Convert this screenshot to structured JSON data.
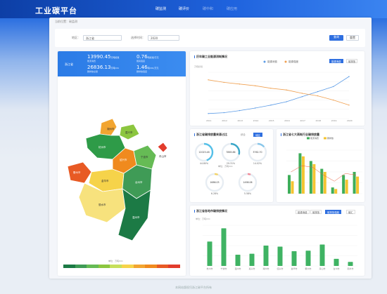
{
  "header": {
    "title": "工业碳平台",
    "nav": [
      "碳监测",
      "碳评价",
      "碳中和",
      "碳应用"
    ]
  },
  "breadcrumb": "当前位置：碳监测",
  "filter": {
    "region_label": "地区：",
    "region_value": "浙江省",
    "time_label": "选择时间：",
    "time_value": "2020",
    "query": "查询",
    "reset": "重置"
  },
  "summary": {
    "region": "浙江省",
    "stats": [
      {
        "value": "13990.45",
        "unit": "万吨标煤",
        "label": "能源消费"
      },
      {
        "value": "0.76",
        "unit": "吨标煤/万元",
        "label": "能耗强度"
      },
      {
        "value": "26836.13",
        "unit": "万吨CO₂",
        "label": "碳排放总量"
      },
      {
        "value": "1.46",
        "unit": "吨CO₂/万元",
        "label": "碳排放强度"
      }
    ]
  },
  "map": {
    "legend_label": "单位：万吨CO₂",
    "cities": [
      "湖州市",
      "嘉兴市",
      "杭州市",
      "绍兴市",
      "宁波市",
      "舟山市",
      "衢州市",
      "金华市",
      "台州市",
      "丽水市",
      "温州市"
    ],
    "colors": {
      "湖州市": "#f2a531",
      "嘉兴市": "#8cc63f",
      "杭州市": "#2e9b48",
      "绍兴市": "#f08a1e",
      "宁波市": "#66bb55",
      "舟山市": "#e23c2c",
      "衢州市": "#e85a24",
      "金华市": "#f6d34a",
      "台州市": "#3f9b56",
      "丽水市": "#f7e27d",
      "温州市": "#1c7a45"
    },
    "scale": [
      "#1c7a45",
      "#3f9b56",
      "#66bb55",
      "#8cc63f",
      "#c6df5b",
      "#f6d34a",
      "#f2a531",
      "#f08a1e",
      "#e85a24",
      "#e23c2c"
    ]
  },
  "trend": {
    "title": "历年碳工业能源消耗情况",
    "tabs": [
      "能源消费",
      "碳排放"
    ],
    "legend": [
      "能源消费",
      "能源强度"
    ],
    "yunit_left": "万吨标煤",
    "yunit_right": "吨标煤/万元"
  },
  "gauge": {
    "title": "浙江省碳排放量来源占比",
    "tabs": [
      "综合",
      "地区"
    ],
    "unit": "单位：万吨CO₂",
    "items": [
      {
        "value": "12023.48",
        "pct": "44.80%"
      },
      {
        "value": "7865.86",
        "pct": "29.31%"
      },
      {
        "value": "3762.70",
        "pct": "14.02%"
      },
      {
        "value": "1686.03",
        "pct": "6.28%"
      },
      {
        "value": "1498.06",
        "pct": "5.58%"
      }
    ]
  },
  "compare": {
    "title": "浙江省七大高耗行业碳排放量",
    "legend": [
      "能源消费",
      "碳排放"
    ],
    "yunit_left": "万吨标煤",
    "yunit_right": "万吨CO₂"
  },
  "citychart": {
    "title": "浙江省各地市碳排放情况",
    "tabs": [
      "能源消费",
      "碳排放",
      "碳排放强度",
      "碳汇"
    ],
    "yunit": "单位：万吨CO₂"
  },
  "chart_data": [
    {
      "type": "line",
      "x": [
        "2011",
        "2012",
        "2013",
        "2014",
        "2015",
        "2016",
        "2017",
        "2018",
        "2019",
        "2020"
      ],
      "series": [
        {
          "name": "能源消费",
          "values": [
            9600,
            9700,
            9950,
            10250,
            10600,
            11000,
            11600,
            12200,
            12800,
            13990
          ]
        },
        {
          "name": "能源强度",
          "values": [
            1.06,
            1.03,
            1.01,
            0.99,
            0.96,
            0.94,
            0.9,
            0.87,
            0.82,
            0.76
          ]
        }
      ]
    },
    {
      "type": "bar",
      "series": [
        {
          "name": "能源消费",
          "values": [
            60,
            130,
            105,
            80,
            20,
            60,
            70
          ]
        },
        {
          "name": "碳排放",
          "values": [
            40,
            120,
            95,
            70,
            15,
            45,
            55
          ]
        }
      ],
      "line": [
        70,
        90,
        85,
        60,
        40,
        65,
        60
      ]
    },
    {
      "type": "bar",
      "categories": [
        "杭州市",
        "宁波市",
        "温州市",
        "嘉兴市",
        "湖州市",
        "绍兴市",
        "金华市",
        "衢州市",
        "舟山市",
        "台州市",
        "丽水市"
      ],
      "values": [
        2400,
        3700,
        1100,
        1200,
        2000,
        1900,
        1450,
        1500,
        2100,
        700,
        400
      ]
    }
  ],
  "footer": "本网站版权归浙江碳平台所有"
}
